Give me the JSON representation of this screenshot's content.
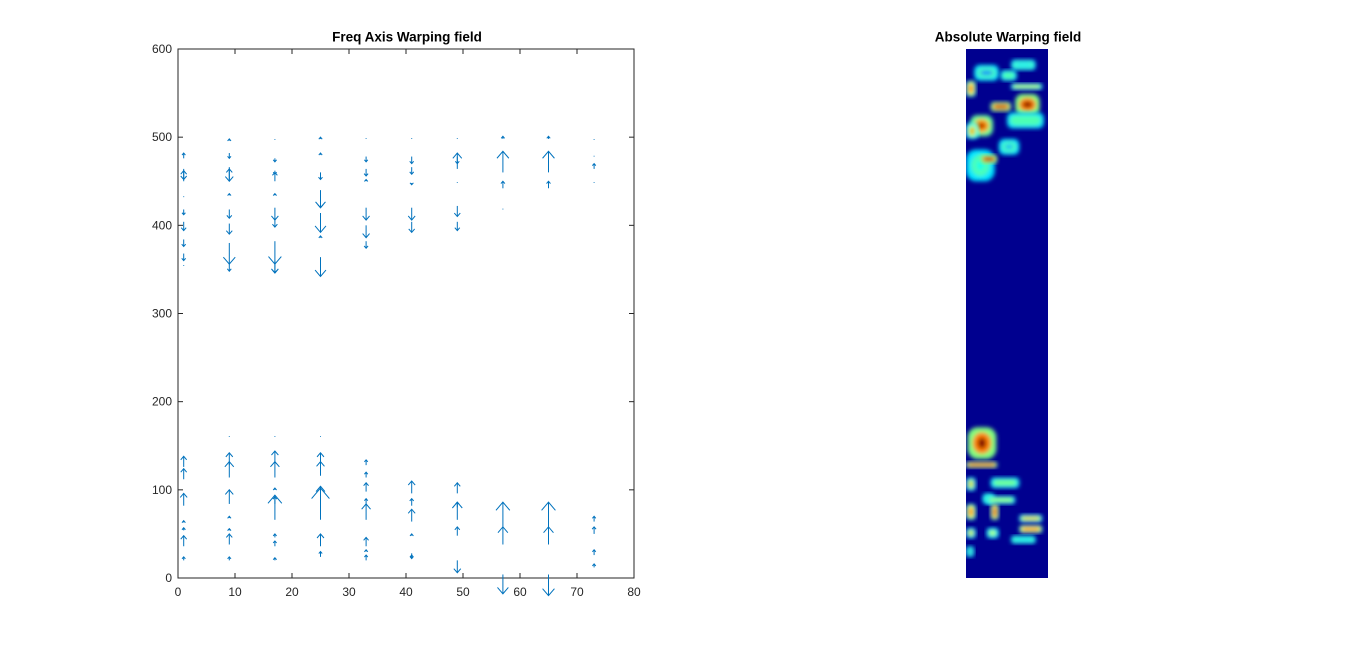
{
  "chart_data": [
    {
      "type": "quiver",
      "title": "Freq Axis Warping field",
      "xlabel": "",
      "ylabel": "",
      "xlim": [
        0,
        80
      ],
      "ylim": [
        0,
        600
      ],
      "xticks": [
        0,
        10,
        20,
        30,
        40,
        50,
        60,
        70,
        80
      ],
      "yticks": [
        0,
        100,
        200,
        300,
        400,
        500,
        600
      ],
      "color": "#0072bd",
      "columns_x": [
        1,
        9,
        17,
        25,
        33,
        41,
        49,
        57,
        65,
        73
      ],
      "note_units": "each vector: [x, y, dy] in data units",
      "vectors": [
        [
          1,
          20,
          4
        ],
        [
          1,
          36,
          12
        ],
        [
          1,
          54,
          3
        ],
        [
          1,
          63,
          2
        ],
        [
          1,
          82,
          14
        ],
        [
          1,
          112,
          12
        ],
        [
          1,
          126,
          12
        ],
        [
          1,
          354,
          0.5
        ],
        [
          1,
          368,
          -8
        ],
        [
          1,
          384,
          -8
        ],
        [
          1,
          404,
          -10
        ],
        [
          1,
          418,
          -6
        ],
        [
          1,
          432,
          1
        ],
        [
          1,
          450,
          12
        ],
        [
          1,
          464,
          -12
        ],
        [
          1,
          476,
          6
        ],
        [
          9,
          20,
          4
        ],
        [
          9,
          38,
          12
        ],
        [
          9,
          54,
          2
        ],
        [
          9,
          68,
          2
        ],
        [
          9,
          84,
          16
        ],
        [
          9,
          114,
          18
        ],
        [
          9,
          128,
          14
        ],
        [
          9,
          160,
          1
        ],
        [
          9,
          356,
          -8
        ],
        [
          9,
          380,
          -24
        ],
        [
          9,
          402,
          -12
        ],
        [
          9,
          418,
          -10
        ],
        [
          9,
          434,
          2
        ],
        [
          9,
          452,
          12
        ],
        [
          9,
          466,
          -16
        ],
        [
          9,
          482,
          -6
        ],
        [
          9,
          496,
          2
        ],
        [
          17,
          20,
          3
        ],
        [
          17,
          36,
          6
        ],
        [
          17,
          46,
          4
        ],
        [
          17,
          66,
          28
        ],
        [
          17,
          84,
          8
        ],
        [
          17,
          100,
          2
        ],
        [
          17,
          114,
          18
        ],
        [
          17,
          130,
          14
        ],
        [
          17,
          160,
          1
        ],
        [
          17,
          356,
          -10
        ],
        [
          17,
          360,
          -14
        ],
        [
          17,
          382,
          -26
        ],
        [
          17,
          408,
          -10
        ],
        [
          17,
          420,
          -14
        ],
        [
          17,
          434,
          2
        ],
        [
          17,
          450,
          10
        ],
        [
          17,
          462,
          -4
        ],
        [
          17,
          476,
          -4
        ],
        [
          17,
          497,
          1
        ],
        [
          25,
          24,
          6
        ],
        [
          25,
          36,
          14
        ],
        [
          25,
          66,
          36
        ],
        [
          25,
          86,
          18
        ],
        [
          25,
          116,
          16
        ],
        [
          25,
          128,
          14
        ],
        [
          25,
          160,
          1
        ],
        [
          25,
          356,
          1
        ],
        [
          25,
          364,
          -22
        ],
        [
          25,
          386,
          2
        ],
        [
          25,
          414,
          -22
        ],
        [
          25,
          430,
          -10
        ],
        [
          25,
          440,
          -20
        ],
        [
          25,
          460,
          -8
        ],
        [
          25,
          480,
          2
        ],
        [
          25,
          498,
          2
        ],
        [
          33,
          20,
          6
        ],
        [
          33,
          30,
          2
        ],
        [
          33,
          36,
          10
        ],
        [
          33,
          66,
          18
        ],
        [
          33,
          84,
          6
        ],
        [
          33,
          98,
          10
        ],
        [
          33,
          114,
          6
        ],
        [
          33,
          128,
          6
        ],
        [
          33,
          382,
          -8
        ],
        [
          33,
          400,
          -14
        ],
        [
          33,
          420,
          -14
        ],
        [
          33,
          450,
          2
        ],
        [
          33,
          464,
          -8
        ],
        [
          33,
          478,
          -6
        ],
        [
          33,
          498,
          1
        ],
        [
          41,
          22,
          4
        ],
        [
          41,
          28,
          -6
        ],
        [
          41,
          48,
          2
        ],
        [
          41,
          64,
          14
        ],
        [
          41,
          82,
          8
        ],
        [
          41,
          96,
          14
        ],
        [
          41,
          404,
          -12
        ],
        [
          41,
          420,
          -14
        ],
        [
          41,
          448,
          -2
        ],
        [
          41,
          466,
          -8
        ],
        [
          41,
          478,
          -8
        ],
        [
          41,
          498,
          1
        ],
        [
          49,
          20,
          -14
        ],
        [
          49,
          48,
          10
        ],
        [
          49,
          66,
          20
        ],
        [
          49,
          80,
          6
        ],
        [
          49,
          96,
          12
        ],
        [
          49,
          404,
          -10
        ],
        [
          49,
          422,
          -12
        ],
        [
          49,
          448,
          1
        ],
        [
          49,
          464,
          18
        ],
        [
          49,
          478,
          -8
        ],
        [
          49,
          498,
          1
        ],
        [
          57,
          4,
          -22
        ],
        [
          57,
          38,
          20
        ],
        [
          57,
          58,
          28
        ],
        [
          57,
          418,
          1
        ],
        [
          57,
          442,
          8
        ],
        [
          57,
          460,
          24
        ],
        [
          57,
          498,
          3
        ],
        [
          65,
          4,
          -24
        ],
        [
          65,
          38,
          20
        ],
        [
          65,
          58,
          28
        ],
        [
          65,
          442,
          8
        ],
        [
          65,
          460,
          24
        ],
        [
          65,
          498,
          3
        ],
        [
          73,
          12,
          4
        ],
        [
          73,
          26,
          6
        ],
        [
          73,
          50,
          8
        ],
        [
          73,
          64,
          6
        ],
        [
          73,
          448,
          1
        ],
        [
          73,
          464,
          6
        ],
        [
          73,
          478,
          1
        ],
        [
          73,
          497,
          1
        ]
      ]
    },
    {
      "type": "heatmap",
      "title": "Absolute Warping field",
      "colormap": "jet",
      "background_color": "#00008f",
      "note": "low values dark blue; high values red. Bright regions near top (freq ~380-500) and bottom (freq ~10-160).",
      "blobs": [
        {
          "x": 0.55,
          "y": 0.02,
          "w": 0.3,
          "h": 0.02,
          "level": 0.35
        },
        {
          "x": 0.1,
          "y": 0.03,
          "w": 0.3,
          "h": 0.03,
          "level": 0.25
        },
        {
          "x": 0.42,
          "y": 0.04,
          "w": 0.2,
          "h": 0.02,
          "level": 0.45
        },
        {
          "x": 0.55,
          "y": 0.065,
          "w": 0.38,
          "h": 0.012,
          "level": 0.6
        },
        {
          "x": 0.0,
          "y": 0.06,
          "w": 0.12,
          "h": 0.03,
          "level": 0.85
        },
        {
          "x": 0.6,
          "y": 0.085,
          "w": 0.3,
          "h": 0.04,
          "level": 1.0
        },
        {
          "x": 0.3,
          "y": 0.1,
          "w": 0.25,
          "h": 0.018,
          "level": 0.95
        },
        {
          "x": 0.5,
          "y": 0.12,
          "w": 0.45,
          "h": 0.03,
          "level": 0.45
        },
        {
          "x": 0.05,
          "y": 0.125,
          "w": 0.28,
          "h": 0.04,
          "level": 0.95
        },
        {
          "x": 0.0,
          "y": 0.14,
          "w": 0.15,
          "h": 0.03,
          "level": 0.75
        },
        {
          "x": 0.4,
          "y": 0.17,
          "w": 0.25,
          "h": 0.03,
          "level": 0.3
        },
        {
          "x": 0.0,
          "y": 0.19,
          "w": 0.35,
          "h": 0.06,
          "level": 0.4
        },
        {
          "x": 0.18,
          "y": 0.2,
          "w": 0.2,
          "h": 0.016,
          "level": 1.0
        },
        {
          "x": 0.02,
          "y": 0.715,
          "w": 0.35,
          "h": 0.06,
          "level": 1.0
        },
        {
          "x": 0.0,
          "y": 0.78,
          "w": 0.38,
          "h": 0.012,
          "level": 0.9
        },
        {
          "x": 0.0,
          "y": 0.81,
          "w": 0.12,
          "h": 0.025,
          "level": 0.7
        },
        {
          "x": 0.3,
          "y": 0.81,
          "w": 0.35,
          "h": 0.02,
          "level": 0.5
        },
        {
          "x": 0.2,
          "y": 0.84,
          "w": 0.15,
          "h": 0.02,
          "level": 0.35
        },
        {
          "x": 0.25,
          "y": 0.845,
          "w": 0.35,
          "h": 0.015,
          "level": 0.55
        },
        {
          "x": 0.3,
          "y": 0.86,
          "w": 0.1,
          "h": 0.03,
          "level": 0.9
        },
        {
          "x": 0.0,
          "y": 0.86,
          "w": 0.12,
          "h": 0.03,
          "level": 0.85
        },
        {
          "x": 0.65,
          "y": 0.88,
          "w": 0.28,
          "h": 0.015,
          "level": 0.7
        },
        {
          "x": 0.65,
          "y": 0.9,
          "w": 0.28,
          "h": 0.015,
          "level": 0.85
        },
        {
          "x": 0.0,
          "y": 0.905,
          "w": 0.12,
          "h": 0.02,
          "level": 0.7
        },
        {
          "x": 0.25,
          "y": 0.905,
          "w": 0.15,
          "h": 0.02,
          "level": 0.6
        },
        {
          "x": 0.55,
          "y": 0.92,
          "w": 0.3,
          "h": 0.015,
          "level": 0.35
        },
        {
          "x": 0.0,
          "y": 0.94,
          "w": 0.1,
          "h": 0.02,
          "level": 0.25
        }
      ]
    }
  ]
}
